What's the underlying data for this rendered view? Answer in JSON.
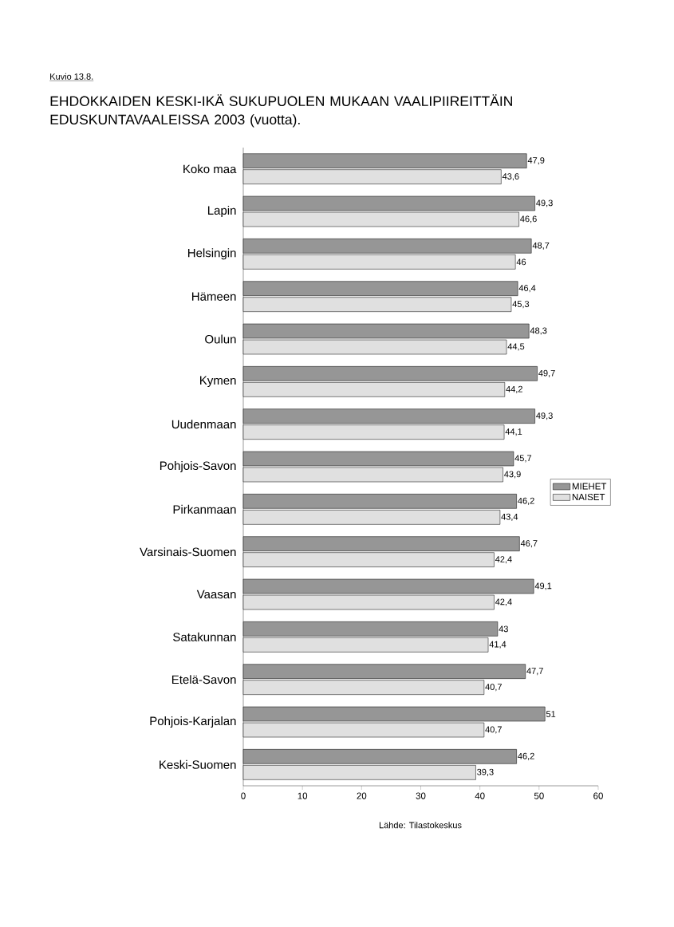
{
  "chart_data": {
    "type": "bar",
    "orientation": "horizontal",
    "title": "EHDOKKAIDEN KESKI-IKÄ SUKUPUOLEN MUKAAN VAALIPIIREITTÄIN EDUSKUNTAVAALEISSA 2003 (vuotta).",
    "annotations": [
      "Kuvio 13.8.",
      "Lähde: Tilastokeskus"
    ],
    "categories": [
      "Koko maa",
      "Lapin",
      "Helsingin",
      "Hämeen",
      "Oulun",
      "Kymen",
      "Uudenmaan",
      "Pohjois-Savon",
      "Pirkanmaan",
      "Varsinais-Suomen",
      "Vaasan",
      "Satakunnan",
      "Etelä-Savon",
      "Pohjois-Karjalan",
      "Keski-Suomen"
    ],
    "series": [
      {
        "name": "MIEHET",
        "color": "#969696",
        "values": [
          47.9,
          49.3,
          48.7,
          46.4,
          48.3,
          49.7,
          49.3,
          45.7,
          46.2,
          46.7,
          49.1,
          43,
          47.7,
          51,
          46.2
        ],
        "value_labels": [
          "47,9",
          "49,3",
          "48,7",
          "46,4",
          "48,3",
          "49,7",
          "49,3",
          "45,7",
          "46,2",
          "46,7",
          "49,1",
          "43",
          "47,7",
          "51",
          "46,2"
        ]
      },
      {
        "name": "NAISET",
        "color": "#e0e0e0",
        "values": [
          43.6,
          46.6,
          46,
          45.3,
          44.5,
          44.2,
          44.1,
          43.9,
          43.4,
          42.4,
          42.4,
          41.4,
          40.7,
          40.7,
          39.3
        ],
        "value_labels": [
          "43,6",
          "46,6",
          "46",
          "45,3",
          "44,5",
          "44,2",
          "44,1",
          "43,9",
          "43,4",
          "42,4",
          "42,4",
          "41,4",
          "40,7",
          "40,7",
          "39,3"
        ]
      }
    ],
    "xlim": [
      0,
      60
    ],
    "xticks": [
      0,
      10,
      20,
      30,
      40,
      50,
      60
    ],
    "grid": false,
    "legend": "right"
  }
}
